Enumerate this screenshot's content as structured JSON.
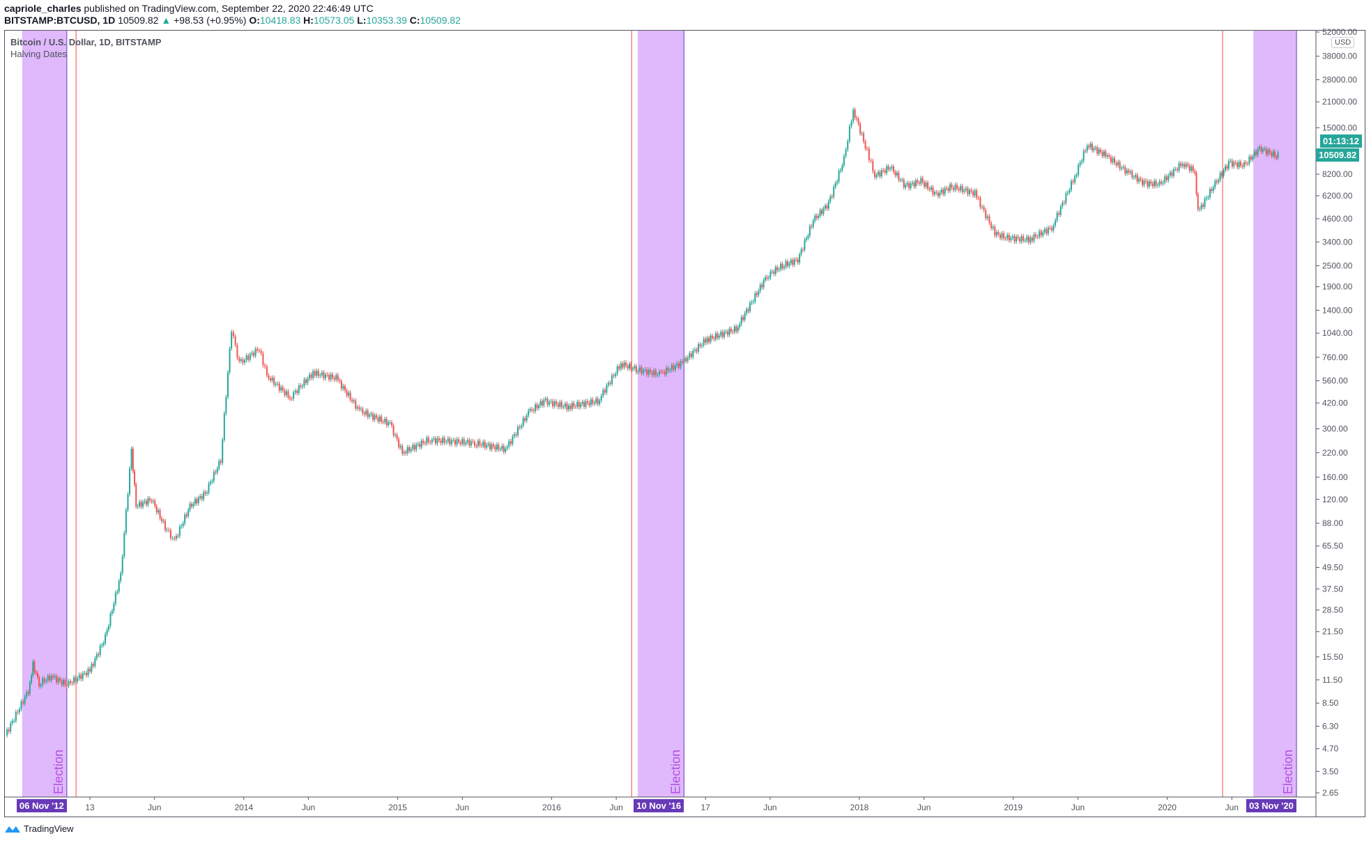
{
  "header": {
    "publisher": "capriole_charles",
    "published_text": "published on TradingView.com, September 22, 2020 22:46:49 UTC",
    "symbol": "BITSTAMP:BTCUSD, 1D",
    "last": "10509.82",
    "change": "+98.53 (+0.95%)",
    "o_label": "O:",
    "o": "10418.83",
    "h_label": "H:",
    "h": "10573.05",
    "l_label": "L:",
    "l": "10353.39",
    "c_label": "C:",
    "c": "10509.82"
  },
  "legend": {
    "title": "Bitcoin / U.S. Dollar, 1D, BITSTAMP",
    "indicator": "Halving Dates"
  },
  "price_axis": {
    "currency": "USD",
    "current_price": "10509.82",
    "countdown": "01:13:12",
    "ticks": [
      "52000.00",
      "38000.00",
      "28000.00",
      "21000.00",
      "15000.00",
      "8200.00",
      "6200.00",
      "4600.00",
      "3400.00",
      "2500.00",
      "1900.00",
      "1400.00",
      "1040.00",
      "760.00",
      "560.00",
      "420.00",
      "300.00",
      "220.00",
      "160.00",
      "120.00",
      "88.00",
      "65.50",
      "49.50",
      "37.50",
      "28.50",
      "21.50",
      "15.50",
      "11.50",
      "8.50",
      "6.30",
      "4.70",
      "3.50",
      "2.65"
    ]
  },
  "time_axis": {
    "ticks": [
      {
        "t": 2013.0,
        "label": "13"
      },
      {
        "t": 2013.42,
        "label": "Jun"
      },
      {
        "t": 2014.0,
        "label": "2014"
      },
      {
        "t": 2014.42,
        "label": "Jun"
      },
      {
        "t": 2015.0,
        "label": "2015"
      },
      {
        "t": 2015.42,
        "label": "Jun"
      },
      {
        "t": 2016.0,
        "label": "2016"
      },
      {
        "t": 2016.42,
        "label": "Jun"
      },
      {
        "t": 2017.0,
        "label": "17"
      },
      {
        "t": 2017.42,
        "label": "Jun"
      },
      {
        "t": 2018.0,
        "label": "2018"
      },
      {
        "t": 2018.42,
        "label": "Jun"
      },
      {
        "t": 2019.0,
        "label": "2019"
      },
      {
        "t": 2019.42,
        "label": "Jun"
      },
      {
        "t": 2020.0,
        "label": "2020"
      },
      {
        "t": 2020.42,
        "label": "Jun"
      }
    ],
    "election_tags": [
      "06 Nov '12",
      "10 Nov '16",
      "03 Nov '20"
    ]
  },
  "annotations": {
    "election_label": "Election",
    "election_bands": [
      [
        2012.56,
        2012.85
      ],
      [
        2016.56,
        2016.86
      ],
      [
        2020.56,
        2020.84
      ]
    ],
    "halving_lines": [
      2012.91,
      2016.52,
      2020.36
    ]
  },
  "colors": {
    "up": "#26a69a",
    "down": "#ef5350",
    "band": "#e0b8fc",
    "election": "#673ab7",
    "halving": "#ff4444"
  },
  "chart_data": {
    "type": "candlestick",
    "yscale": "log",
    "ylim": [
      2.65,
      52000
    ],
    "xlim": [
      2012.45,
      2020.84
    ],
    "series": [
      [
        2012.45,
        5.6
      ],
      [
        2012.6,
        10
      ],
      [
        2012.63,
        14
      ],
      [
        2012.67,
        11
      ],
      [
        2012.75,
        12
      ],
      [
        2012.85,
        10.8
      ],
      [
        2013.0,
        13
      ],
      [
        2013.1,
        20
      ],
      [
        2013.2,
        45
      ],
      [
        2013.27,
        230
      ],
      [
        2013.3,
        110
      ],
      [
        2013.4,
        120
      ],
      [
        2013.5,
        80
      ],
      [
        2013.55,
        70
      ],
      [
        2013.65,
        110
      ],
      [
        2013.75,
        130
      ],
      [
        2013.85,
        200
      ],
      [
        2013.92,
        1100
      ],
      [
        2013.97,
        700
      ],
      [
        2014.1,
        850
      ],
      [
        2014.15,
        600
      ],
      [
        2014.3,
        450
      ],
      [
        2014.45,
        620
      ],
      [
        2014.6,
        580
      ],
      [
        2014.75,
        380
      ],
      [
        2014.95,
        320
      ],
      [
        2015.03,
        220
      ],
      [
        2015.2,
        260
      ],
      [
        2015.5,
        250
      ],
      [
        2015.7,
        230
      ],
      [
        2015.85,
        370
      ],
      [
        2015.95,
        430
      ],
      [
        2016.1,
        400
      ],
      [
        2016.3,
        430
      ],
      [
        2016.45,
        700
      ],
      [
        2016.55,
        650
      ],
      [
        2016.7,
        610
      ],
      [
        2016.85,
        710
      ],
      [
        2017.0,
        950
      ],
      [
        2017.2,
        1100
      ],
      [
        2017.4,
        2200
      ],
      [
        2017.5,
        2500
      ],
      [
        2017.6,
        2700
      ],
      [
        2017.7,
        4500
      ],
      [
        2017.8,
        5600
      ],
      [
        2017.9,
        10000
      ],
      [
        2017.96,
        19000
      ],
      [
        2018.05,
        11000
      ],
      [
        2018.1,
        8000
      ],
      [
        2018.2,
        9000
      ],
      [
        2018.3,
        7000
      ],
      [
        2018.4,
        7500
      ],
      [
        2018.5,
        6300
      ],
      [
        2018.6,
        7000
      ],
      [
        2018.75,
        6400
      ],
      [
        2018.88,
        3800
      ],
      [
        2018.95,
        3600
      ],
      [
        2019.1,
        3500
      ],
      [
        2019.25,
        4100
      ],
      [
        2019.4,
        8000
      ],
      [
        2019.48,
        12000
      ],
      [
        2019.6,
        10500
      ],
      [
        2019.75,
        8300
      ],
      [
        2019.85,
        7300
      ],
      [
        2019.95,
        7200
      ],
      [
        2020.1,
        9500
      ],
      [
        2020.18,
        8500
      ],
      [
        2020.2,
        5000
      ],
      [
        2020.3,
        7000
      ],
      [
        2020.4,
        9500
      ],
      [
        2020.5,
        9200
      ],
      [
        2020.6,
        11500
      ],
      [
        2020.7,
        10500
      ],
      [
        2020.72,
        10509.82
      ]
    ]
  }
}
